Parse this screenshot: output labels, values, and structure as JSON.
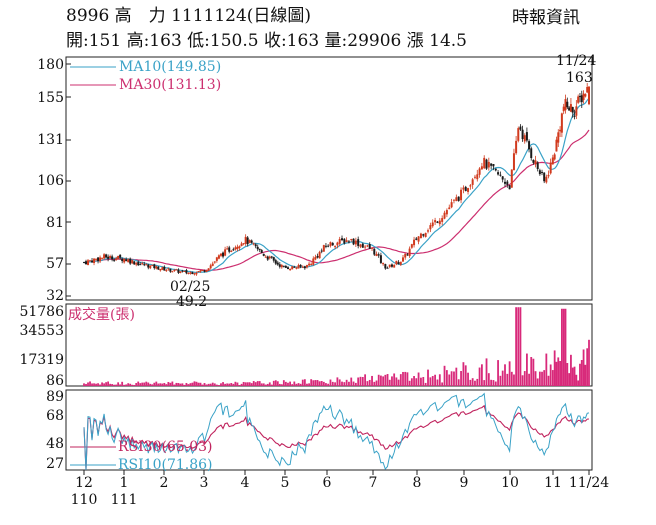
{
  "header": {
    "title": "8996 高　力 1111124(日線圖)",
    "quote": "開:151 高:163 低:150.5 收:163 量:29906 漲 14.5",
    "source": "時報資訊"
  },
  "colors": {
    "up": "#d13a1e",
    "down": "#1a1a1a",
    "ma10": "#3aa2c7",
    "ma30": "#cc2f6f",
    "volume": "#d8297a",
    "rsi30": "#c0245e",
    "rsi10": "#3aa2c7",
    "axis": "#222222"
  },
  "chart_data": [
    {
      "type": "candlestick",
      "panel": "price",
      "y_ticks": [
        "180",
        "155",
        "131",
        "106",
        "81",
        "57",
        "32"
      ],
      "y_tick_values": [
        180,
        155,
        131,
        106,
        81,
        57,
        32
      ],
      "ylim": [
        32,
        180
      ],
      "legend": [
        {
          "name": "MA10(149.85)",
          "color": "#3aa2c7"
        },
        {
          "name": "MA30(131.13)",
          "color": "#cc2f6f"
        }
      ],
      "annotations": {
        "low_date": "02/25",
        "low_value": "49.2",
        "last_date": "11/24",
        "last_value": "163"
      },
      "anchors": [
        {
          "month": 12.0,
          "close": 58
        },
        {
          "month": 12.5,
          "close": 61
        },
        {
          "month": 13.0,
          "close": 60
        },
        {
          "month": 13.4,
          "close": 57
        },
        {
          "month": 14.0,
          "close": 53
        },
        {
          "month": 14.6,
          "close": 50
        },
        {
          "month": 15.0,
          "close": 52
        },
        {
          "month": 15.4,
          "close": 62
        },
        {
          "month": 16.0,
          "close": 71
        },
        {
          "month": 16.5,
          "close": 62
        },
        {
          "month": 17.0,
          "close": 54
        },
        {
          "month": 17.5,
          "close": 55
        },
        {
          "month": 18.0,
          "close": 68
        },
        {
          "month": 18.5,
          "close": 71
        },
        {
          "month": 19.0,
          "close": 65
        },
        {
          "month": 19.3,
          "close": 54
        },
        {
          "month": 19.7,
          "close": 60
        },
        {
          "month": 20.0,
          "close": 72
        },
        {
          "month": 20.5,
          "close": 84
        },
        {
          "month": 21.0,
          "close": 100
        },
        {
          "month": 21.4,
          "close": 118
        },
        {
          "month": 21.8,
          "close": 108
        },
        {
          "month": 22.0,
          "close": 103
        },
        {
          "month": 22.2,
          "close": 140
        },
        {
          "month": 22.5,
          "close": 122
        },
        {
          "month": 22.8,
          "close": 105
        },
        {
          "month": 23.0,
          "close": 120
        },
        {
          "month": 23.3,
          "close": 150
        },
        {
          "month": 23.6,
          "close": 148
        },
        {
          "month": 24.0,
          "close": 163
        }
      ]
    },
    {
      "type": "bar",
      "panel": "volume",
      "title": "成交量(張)",
      "y_ticks": [
        "51786",
        "34553",
        "17319",
        "86"
      ],
      "y_tick_values": [
        51786,
        34553,
        17319,
        86
      ],
      "ylim": [
        0,
        51786
      ],
      "last_value": 29906
    },
    {
      "type": "line",
      "panel": "rsi",
      "y_ticks": [
        "89",
        "68",
        "48",
        "27"
      ],
      "y_tick_values": [
        89,
        68,
        48,
        27
      ],
      "ylim": [
        20,
        95
      ],
      "series": [
        {
          "name": "RSI30(65.03)",
          "color": "#c0245e"
        },
        {
          "name": "RSI10(71.86)",
          "color": "#3aa2c7"
        }
      ]
    }
  ],
  "x_axis": {
    "ticks": [
      {
        "label": "12",
        "sub": "110",
        "month": 12.0
      },
      {
        "label": "1",
        "sub": "111",
        "month": 13.0
      },
      {
        "label": "2",
        "sub": "",
        "month": 14.0
      },
      {
        "label": "3",
        "sub": "",
        "month": 15.0
      },
      {
        "label": "4",
        "sub": "",
        "month": 16.0
      },
      {
        "label": "5",
        "sub": "",
        "month": 17.0
      },
      {
        "label": "6",
        "sub": "",
        "month": 18.0
      },
      {
        "label": "7",
        "sub": "",
        "month": 19.0
      },
      {
        "label": "8",
        "sub": "",
        "month": 20.0
      },
      {
        "label": "9",
        "sub": "",
        "month": 21.0
      },
      {
        "label": "10",
        "sub": "",
        "month": 22.0
      },
      {
        "label": "11",
        "sub": "",
        "month": 23.0
      },
      {
        "label": "11/24",
        "sub": "",
        "month": 24.0
      }
    ]
  }
}
